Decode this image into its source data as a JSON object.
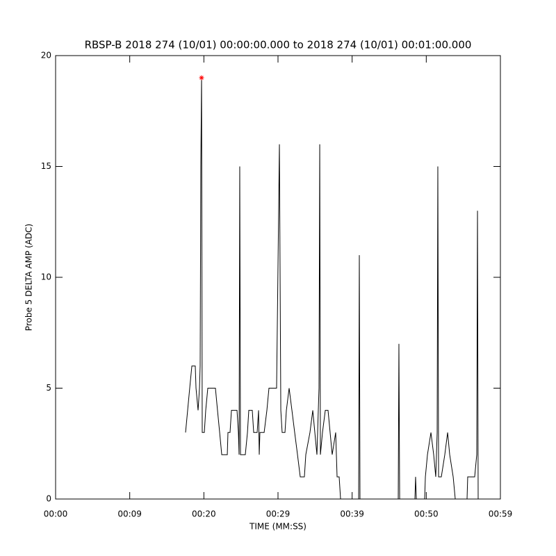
{
  "chart_data": {
    "type": "line",
    "title": "RBSP-B 2018 274 (10/01) 00:00:00.000 to 2018 274 (10/01) 00:01:00.000",
    "x_label": "TIME (MM:SS)",
    "y_label": "Probe 5 DELTA AMP (ADC)",
    "xlim": [
      0,
      60
    ],
    "xticks": [
      {
        "value": 0,
        "label": "00:00"
      },
      {
        "value": 10,
        "label": "00:09"
      },
      {
        "value": 20,
        "label": "00:20"
      },
      {
        "value": 30,
        "label": "00:29"
      },
      {
        "value": 40,
        "label": "00:39"
      },
      {
        "value": 50,
        "label": "00:50"
      },
      {
        "value": 60,
        "label": "00:59"
      }
    ],
    "ylim": [
      0,
      20
    ],
    "yticks": [
      0,
      5,
      10,
      15,
      20
    ],
    "grid": false,
    "series": [
      {
        "name": "Probe 5",
        "color": "#000000",
        "x": [
          17.53,
          17.81,
          18.09,
          18.38,
          18.84,
          18.94,
          19.22,
          19.41,
          19.5,
          19.59,
          19.69,
          19.78,
          20.06,
          20.25,
          20.53,
          21.56,
          21.84,
          22.13,
          22.41,
          23.16,
          23.25,
          23.53,
          23.72,
          24.47,
          24.66,
          24.75,
          24.84,
          24.94,
          25.59,
          25.88,
          26.06,
          26.53,
          26.72,
          27.19,
          27.38,
          27.47,
          27.56,
          28.13,
          28.5,
          28.78,
          29.81,
          30.19,
          30.38,
          30.56,
          30.94,
          31.13,
          31.5,
          31.88,
          32.25,
          32.63,
          33,
          33.56,
          33.75,
          34.31,
          34.69,
          34.97,
          35.25,
          35.53,
          35.63,
          35.72,
          36,
          36.38,
          36.75,
          37.03,
          37.31,
          37.78,
          37.97,
          38.25,
          38.44,
          40.88,
          40.97,
          41.06,
          46.22,
          46.31,
          46.41,
          48.47,
          48.56,
          48.66,
          49.78,
          49.88,
          50.16,
          50.63,
          51,
          51.28,
          51.47,
          51.56,
          51.66,
          52.03,
          52.5,
          52.88,
          53.16,
          53.63,
          53.91,
          55.5,
          55.59,
          56.53,
          56.81,
          56.91,
          57
        ],
        "values": [
          3,
          4,
          5,
          6,
          6,
          5,
          4,
          5,
          6,
          15,
          19,
          3,
          3,
          4,
          5,
          5,
          4,
          3,
          2,
          2,
          3,
          3,
          4,
          4,
          3,
          2,
          15,
          2,
          2,
          3,
          4,
          4,
          3,
          3,
          4,
          2,
          3,
          3,
          4,
          5,
          5,
          16,
          4,
          3,
          3,
          4,
          5,
          4,
          3,
          2,
          1,
          1,
          2,
          3,
          4,
          3,
          2,
          5,
          16,
          2,
          3,
          4,
          4,
          3,
          2,
          3,
          1,
          1,
          0,
          0,
          11,
          0,
          0,
          7,
          0,
          0,
          1,
          0,
          0,
          1,
          2,
          3,
          2,
          1,
          3,
          15,
          1,
          1,
          2,
          3,
          2,
          1,
          0,
          0,
          1,
          1,
          2,
          13,
          0
        ]
      }
    ],
    "max_point": {
      "x": 19.69,
      "y": 19,
      "color": "#ff0000"
    }
  }
}
